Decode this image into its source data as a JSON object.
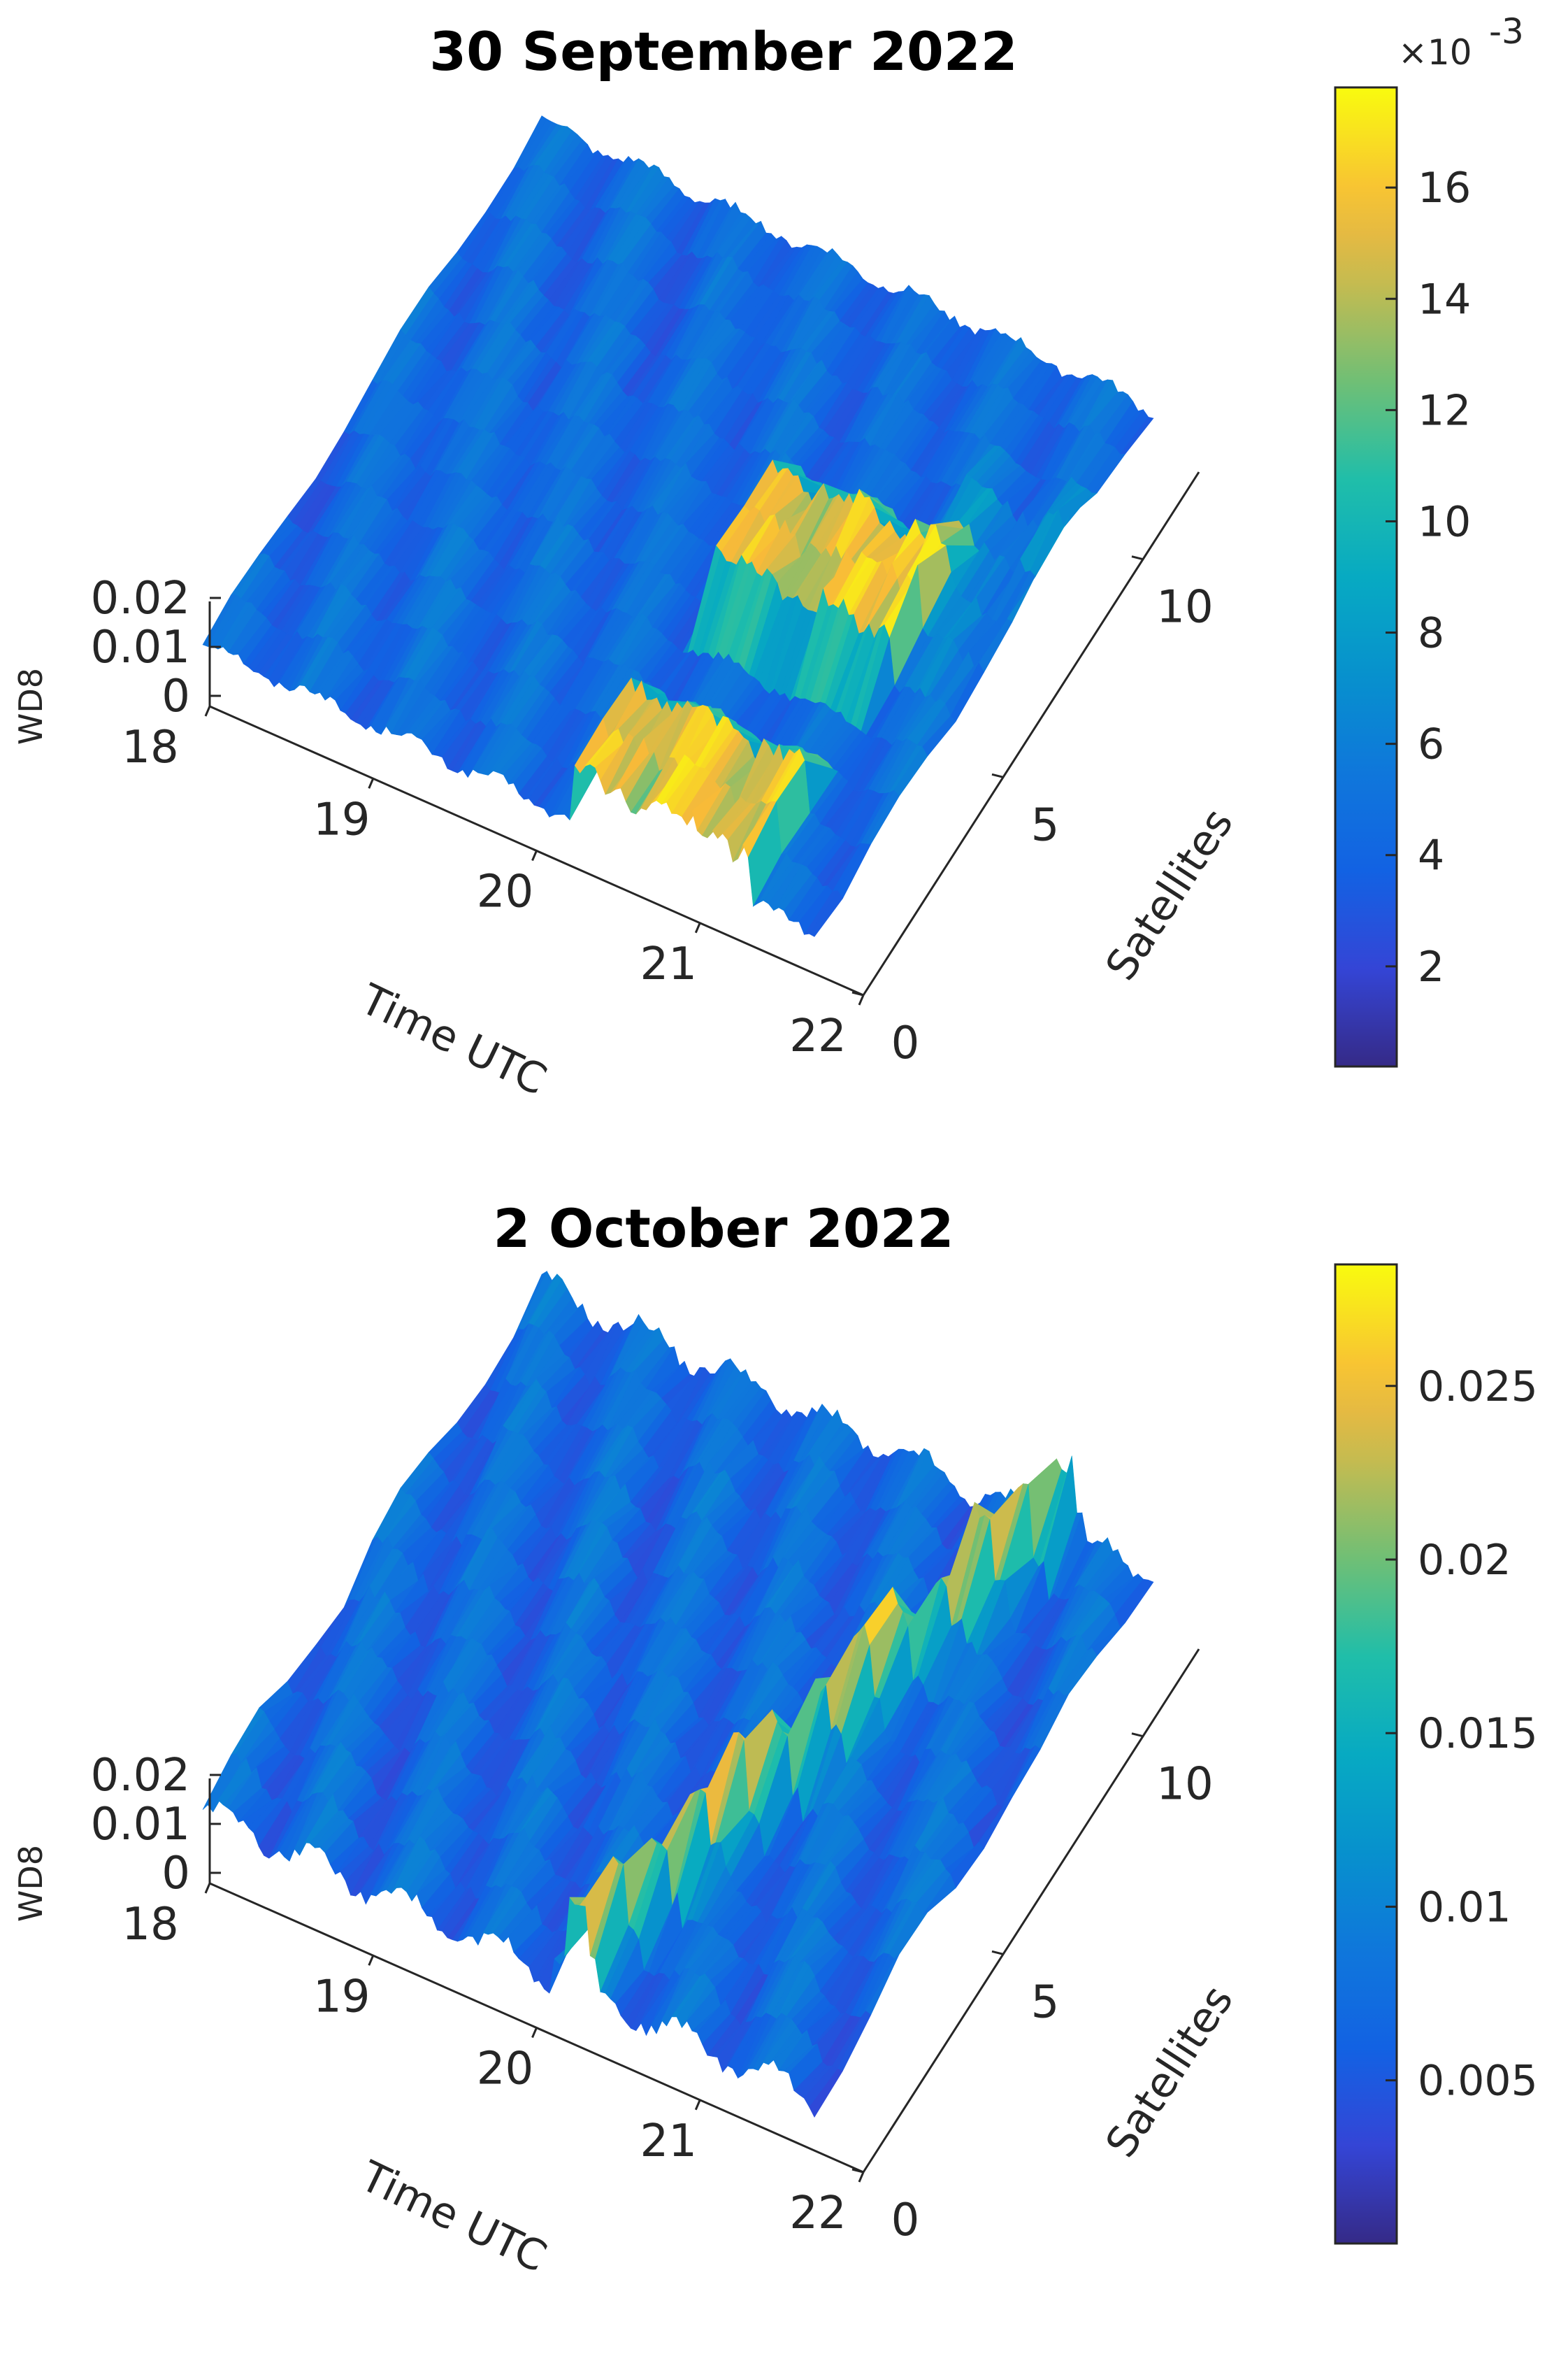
{
  "chart_data": [
    {
      "type": "surface",
      "title": "30 September 2022",
      "xlabel": "Time UTC",
      "ylabel": "Satellites",
      "zlabel": "WD8",
      "x_ticks": [
        "18",
        "19",
        "20",
        "21",
        "22"
      ],
      "y_ticks": [
        "0",
        "5",
        "10"
      ],
      "z_ticks": [
        "0",
        "0.01",
        "0.02"
      ],
      "xlim": [
        18,
        22
      ],
      "ylim": [
        0,
        12
      ],
      "zlim": [
        0,
        0.02
      ],
      "colorbar": {
        "colormap": "parula",
        "range": [
          0.0002,
          0.0178
        ],
        "ticks": [
          "2",
          "4",
          "6",
          "8",
          "10",
          "12",
          "14",
          "16"
        ],
        "exponent": "-3",
        "multiplier_label": "×10"
      },
      "description": "Background WD8 values mostly 0.003–0.006; elevated band near 20.5–21.5 UTC for low-numbered satellites reaching ~0.016"
    },
    {
      "type": "surface",
      "title": "2 October 2022",
      "xlabel": "Time UTC",
      "ylabel": "Satellites",
      "zlabel": "WD8",
      "x_ticks": [
        "18",
        "19",
        "20",
        "21",
        "22"
      ],
      "y_ticks": [
        "0",
        "5",
        "10"
      ],
      "z_ticks": [
        "0",
        "0.01",
        "0.02"
      ],
      "xlim": [
        18,
        22
      ],
      "ylim": [
        0,
        12
      ],
      "zlim": [
        0,
        0.02
      ],
      "colorbar": {
        "colormap": "parula",
        "range": [
          0.0003,
          0.0285
        ],
        "ticks": [
          "0.005",
          "0.01",
          "0.015",
          "0.02",
          "0.025"
        ],
        "exponent": "",
        "multiplier_label": ""
      },
      "description": "Background WD8 values mostly 0.004–0.010; sharp ridge across all satellites near 20.6 UTC reaching ~0.025"
    }
  ]
}
